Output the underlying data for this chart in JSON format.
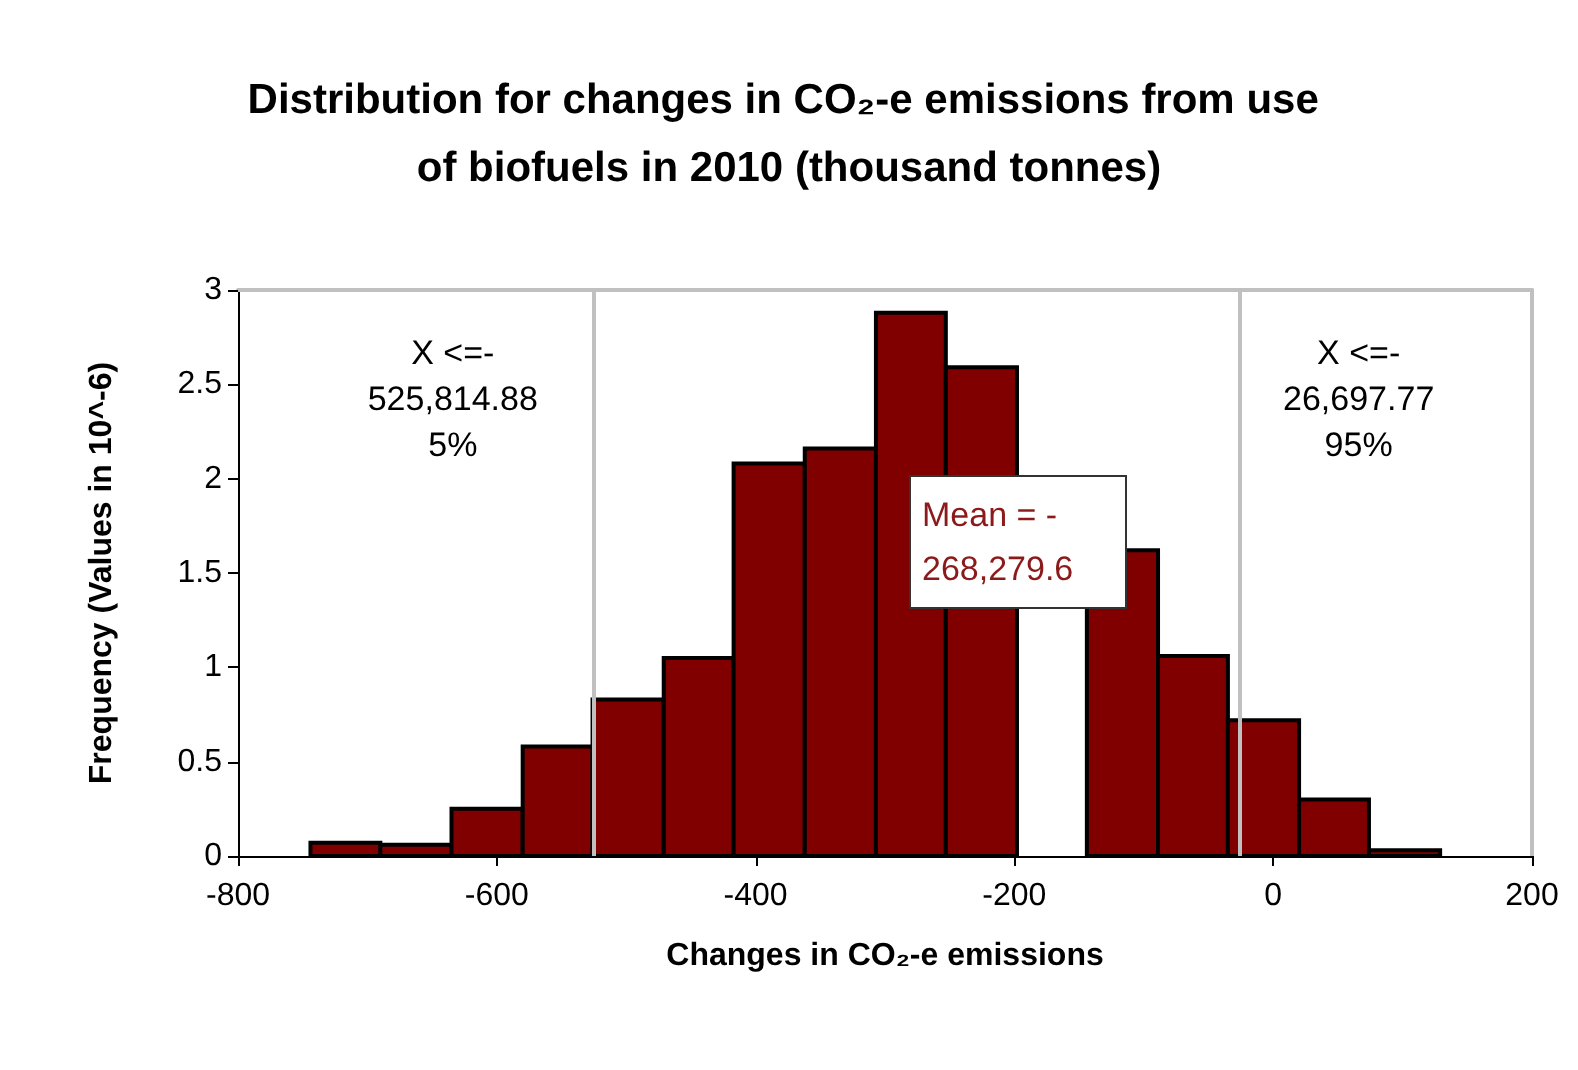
{
  "chart_data": {
    "type": "histogram",
    "title": "Distribution for changes in CO₂-e emissions from use of biofuels in 2010 (thousand tonnes)",
    "xlabel": "Changes in CO₂-e emissions",
    "ylabel": "Frequency (Values in 10^-6)",
    "bins": [
      -744,
      -690,
      -635,
      -580,
      -526,
      -471,
      -417,
      -362,
      -307,
      -253,
      -198,
      -144,
      -89,
      -35,
      20,
      74,
      129
    ],
    "values": [
      0.07,
      0.06,
      0.25,
      0.58,
      0.83,
      1.05,
      2.08,
      2.16,
      2.88,
      2.59,
      null,
      1.62,
      1.06,
      0.72,
      0.3,
      0.03
    ],
    "color": "#800000",
    "xlim": [
      -800,
      200
    ],
    "xticks": [
      -800,
      -600,
      -400,
      -200,
      0,
      200
    ],
    "ylim": [
      0,
      3
    ],
    "yticks": [
      0,
      0.5,
      1,
      1.5,
      2,
      2.5,
      3
    ],
    "ref_lines": [
      {
        "axis": "x",
        "value": -525.81488,
        "label": "X <=-\n525,814.88\n5%",
        "color": "#c0c0c0"
      },
      {
        "axis": "x",
        "value": -26.69777,
        "label": "X <=-\n26,697.77\n95%",
        "color": "#c0c0c0"
      }
    ],
    "annotations": [
      "Mean = -\n268,279.6"
    ],
    "grid": false
  }
}
